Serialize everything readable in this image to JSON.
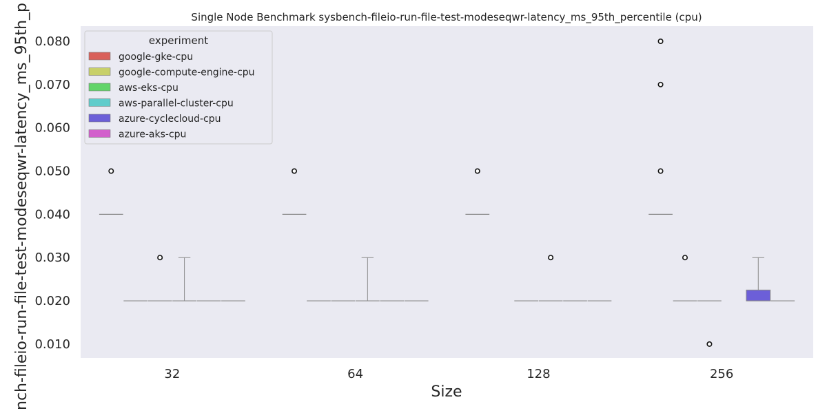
{
  "chart_data": {
    "type": "box",
    "title": "Single Node Benchmark sysbench-fileio-run-file-test-modeseqwr-latency_ms_95th_percentile (cpu)",
    "xlabel": "Size",
    "ylabel": "nch-fileio-run-file-test-modeseqwr-latency_ms_95th_p",
    "categories": [
      "32",
      "64",
      "128",
      "256"
    ],
    "ylim": [
      0.0068,
      0.0835
    ],
    "yticks": [
      "0.010",
      "0.020",
      "0.030",
      "0.040",
      "0.050",
      "0.060",
      "0.070",
      "0.080"
    ],
    "ytick_values": [
      0.01,
      0.02,
      0.03,
      0.04,
      0.05,
      0.06,
      0.07,
      0.08
    ],
    "grid": false,
    "legend": {
      "title": "experiment",
      "placement": "top-left",
      "entries": [
        {
          "name": "google-gke-cpu",
          "color": "#d9605a"
        },
        {
          "name": "google-compute-engine-cpu",
          "color": "#c8d06a"
        },
        {
          "name": "aws-eks-cpu",
          "color": "#62d46a"
        },
        {
          "name": "aws-parallel-cluster-cpu",
          "color": "#60cccb"
        },
        {
          "name": "azure-cyclecloud-cpu",
          "color": "#6c5fd8"
        },
        {
          "name": "azure-aks-cpu",
          "color": "#d25fcc"
        }
      ]
    },
    "series": [
      {
        "name": "google-gke-cpu",
        "boxes": [
          {
            "category": "32",
            "q1": 0.04,
            "median": 0.04,
            "q3": 0.04,
            "whisker_low": 0.04,
            "whisker_high": 0.04,
            "outliers": [
              0.05
            ]
          },
          {
            "category": "64",
            "q1": 0.04,
            "median": 0.04,
            "q3": 0.04,
            "whisker_low": 0.04,
            "whisker_high": 0.04,
            "outliers": [
              0.05
            ]
          },
          {
            "category": "128",
            "q1": 0.04,
            "median": 0.04,
            "q3": 0.04,
            "whisker_low": 0.04,
            "whisker_high": 0.04,
            "outliers": [
              0.05
            ]
          },
          {
            "category": "256",
            "q1": 0.04,
            "median": 0.04,
            "q3": 0.04,
            "whisker_low": 0.04,
            "whisker_high": 0.04,
            "outliers": [
              0.05,
              0.07,
              0.08
            ]
          }
        ]
      },
      {
        "name": "google-compute-engine-cpu",
        "boxes": [
          {
            "category": "32",
            "q1": 0.02,
            "median": 0.02,
            "q3": 0.02,
            "whisker_low": 0.02,
            "whisker_high": 0.02,
            "outliers": []
          },
          {
            "category": "64",
            "q1": 0.02,
            "median": 0.02,
            "q3": 0.02,
            "whisker_low": 0.02,
            "whisker_high": 0.02,
            "outliers": []
          },
          {
            "category": "256",
            "q1": 0.02,
            "median": 0.02,
            "q3": 0.02,
            "whisker_low": 0.02,
            "whisker_high": 0.02,
            "outliers": [
              0.03
            ]
          }
        ]
      },
      {
        "name": "aws-eks-cpu",
        "boxes": [
          {
            "category": "32",
            "q1": 0.02,
            "median": 0.02,
            "q3": 0.02,
            "whisker_low": 0.02,
            "whisker_high": 0.02,
            "outliers": [
              0.03
            ]
          },
          {
            "category": "64",
            "q1": 0.02,
            "median": 0.02,
            "q3": 0.02,
            "whisker_low": 0.02,
            "whisker_high": 0.02,
            "outliers": []
          },
          {
            "category": "128",
            "q1": 0.02,
            "median": 0.02,
            "q3": 0.02,
            "whisker_low": 0.02,
            "whisker_high": 0.02,
            "outliers": []
          },
          {
            "category": "256",
            "q1": 0.02,
            "median": 0.02,
            "q3": 0.02,
            "whisker_low": 0.02,
            "whisker_high": 0.02,
            "outliers": [
              0.01
            ]
          }
        ]
      },
      {
        "name": "aws-parallel-cluster-cpu",
        "boxes": [
          {
            "category": "32",
            "q1": 0.02,
            "median": 0.02,
            "q3": 0.02,
            "whisker_low": 0.02,
            "whisker_high": 0.03,
            "outliers": []
          },
          {
            "category": "64",
            "q1": 0.02,
            "median": 0.02,
            "q3": 0.02,
            "whisker_low": 0.02,
            "whisker_high": 0.03,
            "outliers": []
          },
          {
            "category": "128",
            "q1": 0.02,
            "median": 0.02,
            "q3": 0.02,
            "whisker_low": 0.02,
            "whisker_high": 0.02,
            "outliers": [
              0.03
            ]
          }
        ]
      },
      {
        "name": "azure-cyclecloud-cpu",
        "boxes": [
          {
            "category": "32",
            "q1": 0.02,
            "median": 0.02,
            "q3": 0.02,
            "whisker_low": 0.02,
            "whisker_high": 0.02,
            "outliers": []
          },
          {
            "category": "64",
            "q1": 0.02,
            "median": 0.02,
            "q3": 0.02,
            "whisker_low": 0.02,
            "whisker_high": 0.02,
            "outliers": []
          },
          {
            "category": "128",
            "q1": 0.02,
            "median": 0.02,
            "q3": 0.02,
            "whisker_low": 0.02,
            "whisker_high": 0.02,
            "outliers": []
          },
          {
            "category": "256",
            "q1": 0.02,
            "median": 0.02,
            "q3": 0.0225,
            "whisker_low": 0.02,
            "whisker_high": 0.03,
            "outliers": []
          }
        ]
      },
      {
        "name": "azure-aks-cpu",
        "boxes": [
          {
            "category": "32",
            "q1": 0.02,
            "median": 0.02,
            "q3": 0.02,
            "whisker_low": 0.02,
            "whisker_high": 0.02,
            "outliers": []
          },
          {
            "category": "64",
            "q1": 0.02,
            "median": 0.02,
            "q3": 0.02,
            "whisker_low": 0.02,
            "whisker_high": 0.02,
            "outliers": []
          },
          {
            "category": "128",
            "q1": 0.02,
            "median": 0.02,
            "q3": 0.02,
            "whisker_low": 0.02,
            "whisker_high": 0.02,
            "outliers": []
          },
          {
            "category": "256",
            "q1": 0.02,
            "median": 0.02,
            "q3": 0.02,
            "whisker_low": 0.02,
            "whisker_high": 0.02,
            "outliers": []
          }
        ]
      }
    ]
  }
}
